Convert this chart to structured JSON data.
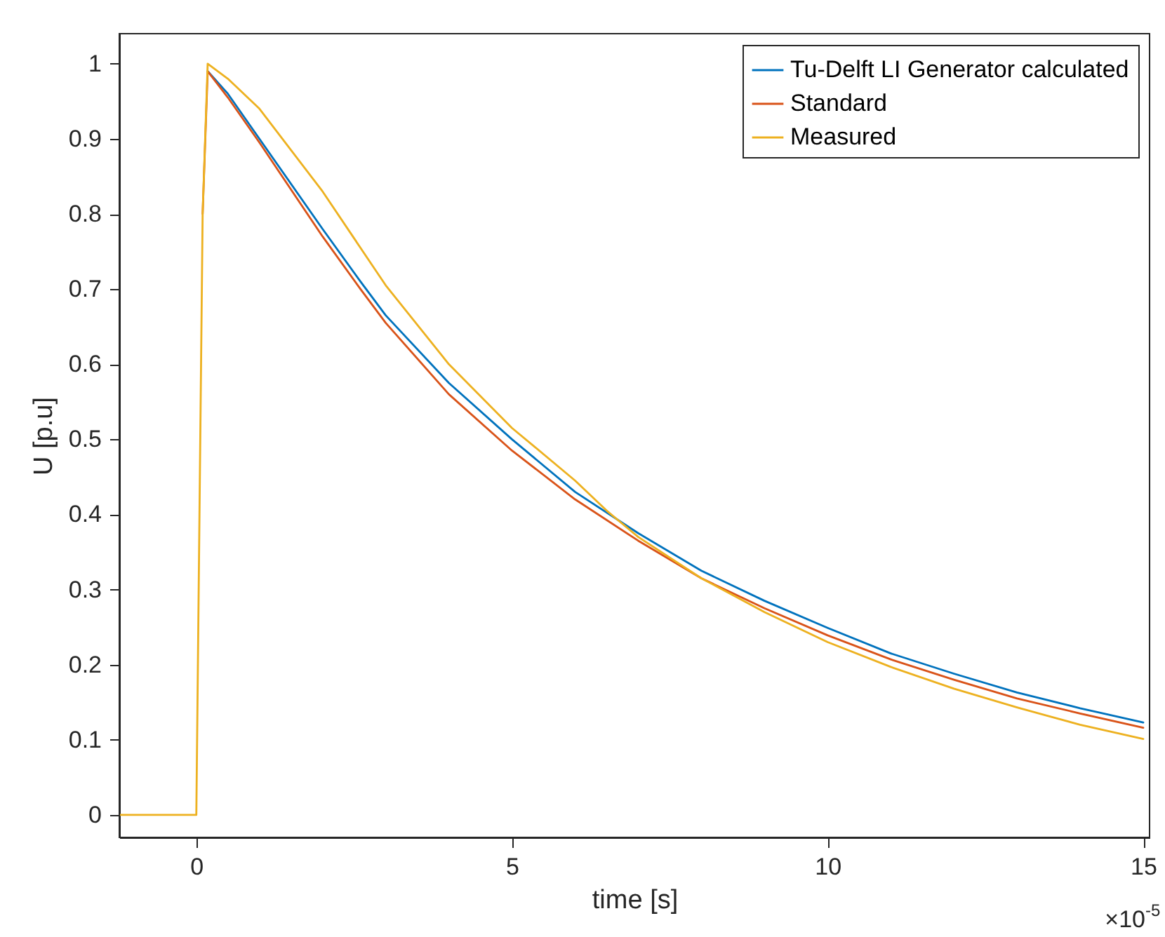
{
  "chart_data": {
    "type": "line",
    "xlabel": "time [s]",
    "ylabel": "U [p.u]",
    "annotations": [
      "×10$^{-5}$"
    ],
    "xlim": [
      -1.22,
      15.1
    ],
    "xticks": [
      0,
      5,
      10,
      15
    ],
    "ylim": [
      -0.03,
      1.04
    ],
    "yticks": [
      0,
      0.1,
      0.2,
      0.3,
      0.4,
      0.5,
      0.6,
      0.7,
      0.8,
      0.9,
      1
    ],
    "grid": false,
    "legend": "top right",
    "line_style": "solid",
    "marker": "none",
    "series": [
      {
        "name": "Tu-Delft LI Generator calculated",
        "color": "#0072bd",
        "x": [
          0.18,
          0.5,
          1,
          2,
          2.6,
          3,
          4,
          5,
          6,
          7,
          8,
          9,
          10,
          11,
          12,
          13,
          14,
          15
        ],
        "values": [
          0.99,
          0.96,
          0.9,
          0.78,
          0.71,
          0.665,
          0.575,
          0.5,
          0.43,
          0.375,
          0.325,
          0.285,
          0.249,
          0.215,
          0.188,
          0.163,
          0.142,
          0.123
        ]
      },
      {
        "name": "Standard",
        "color": "#d95319",
        "x": [
          0.1,
          0.18,
          0.5,
          1,
          2,
          2.6,
          3,
          4,
          5,
          6,
          7,
          8,
          9,
          10,
          11,
          12,
          13,
          14,
          15
        ],
        "values": [
          0.8,
          0.99,
          0.955,
          0.895,
          0.77,
          0.7,
          0.655,
          0.56,
          0.485,
          0.42,
          0.365,
          0.315,
          0.275,
          0.239,
          0.207,
          0.18,
          0.155,
          0.135,
          0.116
        ]
      },
      {
        "name": "Measured",
        "color": "#edb120",
        "x": [
          -1.22,
          -0.05,
          0,
          0.05,
          0.1,
          0.18,
          0.5,
          1,
          2,
          3,
          4,
          5,
          5.36,
          6,
          6.5,
          7,
          8,
          9,
          10,
          11,
          12,
          13,
          14,
          15
        ],
        "values": [
          0,
          0,
          0,
          0.4,
          0.8,
          1,
          0.98,
          0.94,
          0.83,
          0.705,
          0.6,
          0.515,
          0.49,
          0.445,
          0.405,
          0.37,
          0.315,
          0.27,
          0.23,
          0.197,
          0.168,
          0.143,
          0.12,
          0.101
        ]
      }
    ]
  }
}
